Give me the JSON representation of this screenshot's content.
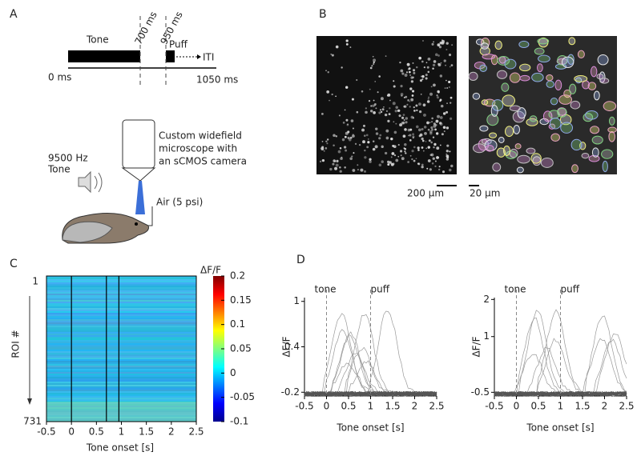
{
  "panel_labels": [
    "A",
    "B",
    "C",
    "D"
  ],
  "timeline": {
    "tone": "Tone",
    "puff": "Puff",
    "iti": "ITI",
    "start": "0 ms",
    "end": "1050 ms",
    "marks": [
      "700 ms",
      "950 ms"
    ]
  },
  "setup": {
    "microscope": [
      "Custom widefield",
      "microscope with",
      "an sCMOS camera"
    ],
    "tone": [
      "9500 Hz",
      "Tone"
    ],
    "air": "Air (5 psi)"
  },
  "images": {
    "scale_bars": [
      "200 µm",
      "20 µm"
    ]
  },
  "heatmap": {
    "ylabel": "ROI #",
    "y_top": "1",
    "y_bottom": "731",
    "xlabel": "Tone onset [s]",
    "xlim": [
      -0.5,
      2.5
    ],
    "xticks": [
      -0.5,
      0,
      0.5,
      1,
      1.5,
      2,
      2.5
    ],
    "event_lines": [
      0,
      0.7,
      0.95
    ],
    "colorbar": {
      "label": "ΔF/F",
      "lim": [
        -0.1,
        0.2
      ],
      "ticks": [
        0.2,
        0.15,
        0.1,
        0.05,
        0,
        -0.05,
        -0.1
      ]
    }
  },
  "traces": [
    {
      "ylabel": "ΔF/F",
      "xlabel": "Tone onset [s]",
      "xlim": [
        -0.5,
        2.5
      ],
      "xticks": [
        -0.5,
        0,
        0.5,
        1,
        1.5,
        2,
        2.5
      ],
      "ylim": [
        -0.25,
        1.05
      ],
      "yticks": [
        1,
        0.4,
        -0.2
      ],
      "events": [
        {
          "label": "tone",
          "x": 0
        },
        {
          "label": "puff",
          "x": 1
        }
      ]
    },
    {
      "ylabel": "ΔF/F",
      "xlabel": "Tone onset [s]",
      "xlim": [
        -0.5,
        2.5
      ],
      "xticks": [
        -0.5,
        0,
        0.5,
        1,
        1.5,
        2,
        2.5
      ],
      "ylim": [
        -0.6,
        2.05
      ],
      "yticks": [
        2,
        1,
        -0.5
      ],
      "events": [
        {
          "label": "tone",
          "x": 0
        },
        {
          "label": "puff",
          "x": 1
        }
      ]
    }
  ]
}
